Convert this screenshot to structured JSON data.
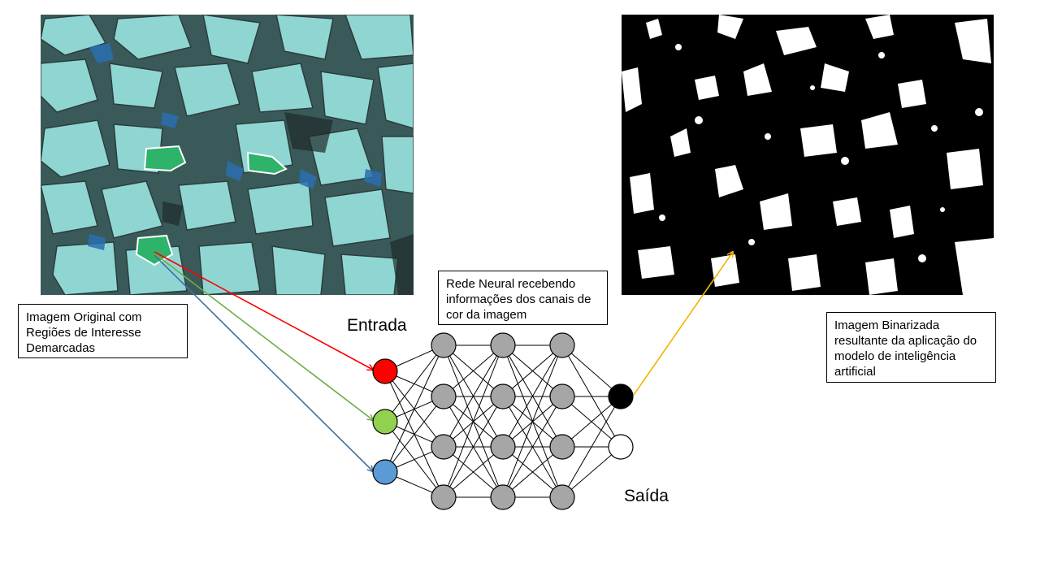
{
  "labels": {
    "original": "Imagem Original com Regiões de Interesse Demarcadas",
    "rede": "Rede Neural recebendo informações dos canais de cor da imagem",
    "binarizada": "Imagem Binarizada resultante da aplicação do modelo de inteligência artificial",
    "entrada": "Entrada",
    "saida": "Saída"
  },
  "network": {
    "input_nodes": [
      {
        "name": "red-channel",
        "color": "#ff0000"
      },
      {
        "name": "green-channel",
        "color": "#92d050"
      },
      {
        "name": "blue-channel",
        "color": "#5b9bd5"
      }
    ],
    "hidden_layers": [
      4,
      4,
      4
    ],
    "hidden_color": "#a6a6a6",
    "output_nodes": [
      {
        "name": "black-class",
        "color": "#000000"
      },
      {
        "name": "white-class",
        "color": "#ffffff"
      }
    ]
  },
  "arrow_colors": {
    "red": "#ff0000",
    "green": "#70ad47",
    "blue": "#41719c",
    "output": "#f4b400"
  },
  "images": {
    "original_alt": "thin section micrograph",
    "binarized_alt": "binarized micrograph"
  }
}
